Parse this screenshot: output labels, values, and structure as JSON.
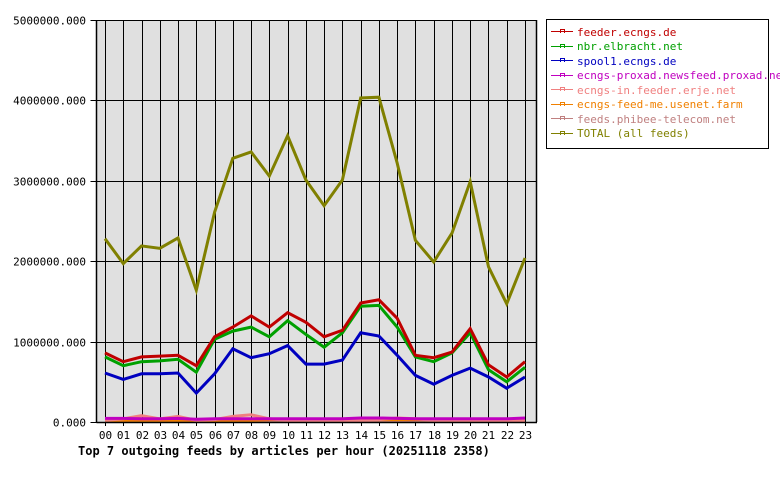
{
  "chart_data": {
    "type": "line",
    "title": "Top 7 outgoing feeds by articles per hour (20251118 2358)",
    "xlabel": "",
    "ylabel": "",
    "ylim": [
      0,
      5000000
    ],
    "grid": true,
    "legend_position": "right",
    "x": [
      "00",
      "01",
      "02",
      "03",
      "04",
      "05",
      "06",
      "07",
      "08",
      "09",
      "10",
      "11",
      "12",
      "13",
      "14",
      "15",
      "16",
      "17",
      "18",
      "19",
      "20",
      "21",
      "22",
      "23"
    ],
    "y_ticks": [
      "0.000",
      "1000000.000",
      "2000000.000",
      "3000000.000",
      "4000000.000",
      "5000000.000"
    ],
    "series": [
      {
        "name": "feeder.ecngs.de",
        "color": "#c00000",
        "values": [
          860000,
          750000,
          810000,
          820000,
          830000,
          700000,
          1060000,
          1180000,
          1320000,
          1180000,
          1360000,
          1240000,
          1060000,
          1140000,
          1480000,
          1520000,
          1290000,
          830000,
          800000,
          870000,
          1160000,
          710000,
          560000,
          750000
        ]
      },
      {
        "name": "nbr.elbracht.net",
        "color": "#00a000",
        "values": [
          810000,
          700000,
          750000,
          760000,
          780000,
          620000,
          1030000,
          1130000,
          1180000,
          1060000,
          1260000,
          1090000,
          930000,
          1110000,
          1440000,
          1450000,
          1180000,
          810000,
          750000,
          860000,
          1110000,
          650000,
          500000,
          680000
        ]
      },
      {
        "name": "spool1.ecngs.de",
        "color": "#0000c0",
        "values": [
          610000,
          530000,
          600000,
          600000,
          610000,
          360000,
          600000,
          910000,
          800000,
          850000,
          950000,
          720000,
          720000,
          770000,
          1110000,
          1070000,
          830000,
          580000,
          470000,
          580000,
          670000,
          560000,
          420000,
          560000
        ]
      },
      {
        "name": "ecngs-proxad.newsfeed.proxad.net",
        "color": "#c000c0",
        "values": [
          45000,
          45000,
          40000,
          40000,
          45000,
          35000,
          40000,
          40000,
          40000,
          40000,
          40000,
          40000,
          40000,
          40000,
          50000,
          50000,
          45000,
          40000,
          40000,
          40000,
          40000,
          40000,
          40000,
          50000
        ]
      },
      {
        "name": "ecngs-in.feeder.erje.net",
        "color": "#f08080",
        "values": [
          20000,
          40000,
          80000,
          40000,
          70000,
          20000,
          30000,
          70000,
          90000,
          40000,
          20000,
          20000,
          20000,
          20000,
          20000,
          30000,
          50000,
          40000,
          20000,
          20000,
          20000,
          20000,
          20000,
          20000
        ]
      },
      {
        "name": "ecngs-feed-me.usenet.farm",
        "color": "#f08000",
        "values": [
          20000,
          20000,
          20000,
          20000,
          20000,
          20000,
          20000,
          20000,
          20000,
          30000,
          30000,
          30000,
          30000,
          30000,
          30000,
          30000,
          30000,
          30000,
          30000,
          30000,
          30000,
          30000,
          30000,
          30000
        ]
      },
      {
        "name": "feeds.phibee-telecom.net",
        "color": "#c08080",
        "values": [
          15000,
          15000,
          15000,
          15000,
          15000,
          15000,
          15000,
          15000,
          15000,
          15000,
          15000,
          15000,
          15000,
          15000,
          15000,
          15000,
          15000,
          15000,
          15000,
          15000,
          15000,
          15000,
          15000,
          15000
        ]
      },
      {
        "name": "TOTAL (all feeds)",
        "color": "#808000",
        "values": [
          2280000,
          1970000,
          2190000,
          2160000,
          2290000,
          1640000,
          2610000,
          3280000,
          3360000,
          3060000,
          3560000,
          3010000,
          2690000,
          3010000,
          4030000,
          4040000,
          3220000,
          2260000,
          1990000,
          2350000,
          2990000,
          1930000,
          1470000,
          2040000
        ]
      }
    ]
  },
  "legend": {
    "items": [
      {
        "label": "feeder.ecngs.de",
        "color": "#c00000"
      },
      {
        "label": "nbr.elbracht.net",
        "color": "#00a000"
      },
      {
        "label": "spool1.ecngs.de",
        "color": "#0000c0"
      },
      {
        "label": "ecngs-proxad.newsfeed.proxad.net",
        "color": "#c000c0"
      },
      {
        "label": "ecngs-in.feeder.erje.net",
        "color": "#f08080"
      },
      {
        "label": "ecngs-feed-me.usenet.farm",
        "color": "#f08000"
      },
      {
        "label": "feeds.phibee-telecom.net",
        "color": "#c08080"
      },
      {
        "label": "TOTAL (all feeds)",
        "color": "#808000"
      }
    ]
  },
  "colors": {
    "plot_background": "#e0e0e0",
    "grid": "#000000",
    "page_background": "#ffffff"
  }
}
